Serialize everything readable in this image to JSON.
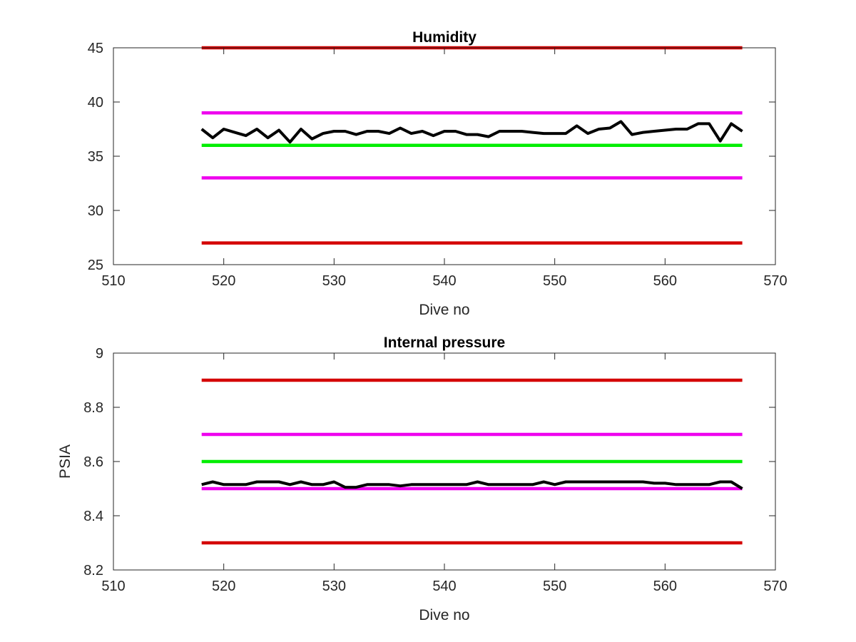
{
  "chart_data": [
    {
      "type": "line",
      "title": "Humidity",
      "xlabel": "Dive no",
      "ylabel": "",
      "xlim": [
        510,
        570
      ],
      "ylim": [
        25,
        45
      ],
      "xticks": [
        510,
        520,
        530,
        540,
        550,
        560,
        570
      ],
      "yticks": [
        25,
        30,
        35,
        40,
        45
      ],
      "grid": false,
      "series": [
        {
          "color": "#d40000",
          "style": "limit",
          "x": [
            518,
            567
          ],
          "y": [
            45,
            45
          ]
        },
        {
          "color": "#ee00ee",
          "style": "limit",
          "x": [
            518,
            567
          ],
          "y": [
            39,
            39
          ]
        },
        {
          "color": "#00ee00",
          "style": "limit",
          "x": [
            518,
            567
          ],
          "y": [
            36,
            36
          ]
        },
        {
          "color": "#ee00ee",
          "style": "limit",
          "x": [
            518,
            567
          ],
          "y": [
            33,
            33
          ]
        },
        {
          "color": "#d40000",
          "style": "limit",
          "x": [
            518,
            567
          ],
          "y": [
            27,
            27
          ]
        },
        {
          "color": "#000000",
          "style": "data",
          "x": [
            518,
            519,
            520,
            521,
            522,
            523,
            524,
            525,
            526,
            527,
            528,
            529,
            530,
            531,
            532,
            533,
            534,
            535,
            536,
            537,
            538,
            539,
            540,
            541,
            542,
            543,
            544,
            545,
            546,
            547,
            548,
            549,
            550,
            551,
            552,
            553,
            554,
            555,
            556,
            557,
            558,
            559,
            560,
            561,
            562,
            563,
            564,
            565,
            566,
            567
          ],
          "y": [
            37.5,
            36.7,
            37.5,
            37.2,
            36.9,
            37.5,
            36.7,
            37.4,
            36.3,
            37.5,
            36.6,
            37.1,
            37.3,
            37.3,
            37.0,
            37.3,
            37.3,
            37.1,
            37.6,
            37.1,
            37.3,
            36.9,
            37.3,
            37.3,
            37.0,
            37.0,
            36.8,
            37.3,
            37.3,
            37.3,
            37.2,
            37.1,
            37.1,
            37.1,
            37.8,
            37.1,
            37.5,
            37.6,
            38.2,
            37.0,
            37.2,
            37.3,
            37.4,
            37.5,
            37.5,
            38.0,
            38.0,
            36.4,
            38.0,
            37.3
          ]
        }
      ]
    },
    {
      "type": "line",
      "title": "Internal pressure",
      "xlabel": "Dive no",
      "ylabel": "PSIA",
      "xlim": [
        510,
        570
      ],
      "ylim": [
        8.2,
        9.0
      ],
      "xticks": [
        510,
        520,
        530,
        540,
        550,
        560,
        570
      ],
      "yticks": [
        8.2,
        8.4,
        8.6,
        8.8,
        9
      ],
      "grid": false,
      "series": [
        {
          "color": "#d40000",
          "style": "limit",
          "x": [
            518,
            567
          ],
          "y": [
            8.9,
            8.9
          ]
        },
        {
          "color": "#ee00ee",
          "style": "limit",
          "x": [
            518,
            567
          ],
          "y": [
            8.7,
            8.7
          ]
        },
        {
          "color": "#00ee00",
          "style": "limit",
          "x": [
            518,
            567
          ],
          "y": [
            8.6,
            8.6
          ]
        },
        {
          "color": "#ee00ee",
          "style": "limit",
          "x": [
            518,
            567
          ],
          "y": [
            8.5,
            8.5
          ]
        },
        {
          "color": "#d40000",
          "style": "limit",
          "x": [
            518,
            567
          ],
          "y": [
            8.3,
            8.3
          ]
        },
        {
          "color": "#000000",
          "style": "data",
          "x": [
            518,
            519,
            520,
            521,
            522,
            523,
            524,
            525,
            526,
            527,
            528,
            529,
            530,
            531,
            532,
            533,
            534,
            535,
            536,
            537,
            538,
            539,
            540,
            541,
            542,
            543,
            544,
            545,
            546,
            547,
            548,
            549,
            550,
            551,
            552,
            553,
            554,
            555,
            556,
            557,
            558,
            559,
            560,
            561,
            562,
            563,
            564,
            565,
            566,
            567
          ],
          "y": [
            8.515,
            8.525,
            8.515,
            8.515,
            8.515,
            8.525,
            8.525,
            8.525,
            8.515,
            8.525,
            8.515,
            8.515,
            8.525,
            8.505,
            8.505,
            8.515,
            8.515,
            8.515,
            8.51,
            8.515,
            8.515,
            8.515,
            8.515,
            8.515,
            8.515,
            8.525,
            8.515,
            8.515,
            8.515,
            8.515,
            8.515,
            8.525,
            8.515,
            8.525,
            8.525,
            8.525,
            8.525,
            8.525,
            8.525,
            8.525,
            8.525,
            8.52,
            8.52,
            8.515,
            8.515,
            8.515,
            8.515,
            8.525,
            8.525,
            8.5
          ]
        }
      ]
    }
  ]
}
